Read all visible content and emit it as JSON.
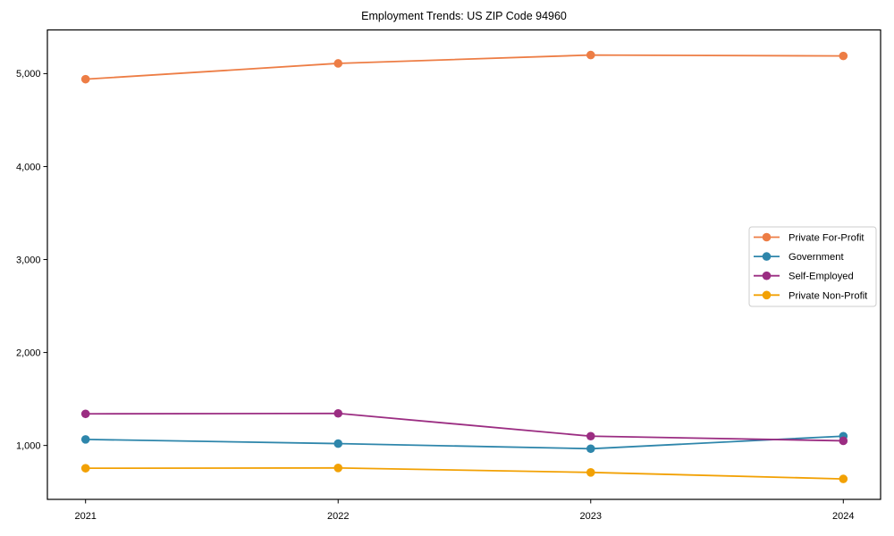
{
  "chart_data": {
    "type": "line",
    "title": "Employment Trends: US ZIP Code 94960",
    "x": [
      2021,
      2022,
      2023,
      2024
    ],
    "x_tick_labels": [
      "2021",
      "2022",
      "2023",
      "2024"
    ],
    "series": [
      {
        "name": "Private For-Profit",
        "color": "#ED7D45",
        "values": [
          4940,
          5110,
          5200,
          5190
        ]
      },
      {
        "name": "Government",
        "color": "#2E86AB",
        "values": [
          1065,
          1020,
          965,
          1100
        ]
      },
      {
        "name": "Self-Employed",
        "color": "#9B2D82",
        "values": [
          1340,
          1345,
          1100,
          1050
        ]
      },
      {
        "name": "Private Non-Profit",
        "color": "#F2A104",
        "values": [
          755,
          758,
          710,
          640
        ]
      }
    ],
    "yticks": [
      1000,
      2000,
      3000,
      4000,
      5000
    ],
    "ytick_labels": [
      "1,000",
      "2,000",
      "3,000",
      "4,000",
      "5,000"
    ],
    "ylim": [
      420,
      5470
    ],
    "xlabel": "",
    "ylabel": "",
    "grid": false,
    "legend": {
      "position": "center right",
      "entries": [
        "Private For-Profit",
        "Government",
        "Self-Employed",
        "Private Non-Profit"
      ]
    },
    "axis_color": "#000000",
    "background_color": "#ffffff"
  }
}
